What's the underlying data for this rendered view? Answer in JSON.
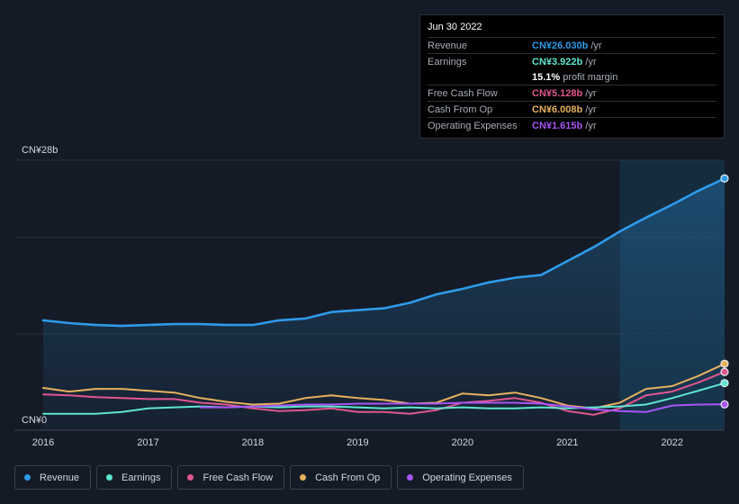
{
  "tooltip": {
    "date": "Jun 30 2022",
    "rows": [
      {
        "label": "Revenue",
        "value": "CN¥26.030b",
        "unit": "/yr",
        "color": "#2e9bea"
      },
      {
        "label": "Earnings",
        "value": "CN¥3.922b",
        "unit": "/yr",
        "color": "#5ee6d0"
      },
      {
        "label": "",
        "value": "15.1%",
        "unit": "profit margin",
        "color": "#ffffff"
      },
      {
        "label": "Free Cash Flow",
        "value": "CN¥5.128b",
        "unit": "/yr",
        "color": "#e0568f"
      },
      {
        "label": "Cash From Op",
        "value": "CN¥6.008b",
        "unit": "/yr",
        "color": "#e8b15e"
      },
      {
        "label": "Operating Expenses",
        "value": "CN¥1.615b",
        "unit": "/yr",
        "color": "#a855f7"
      }
    ]
  },
  "legend": [
    {
      "label": "Revenue",
      "color": "#2e9bea"
    },
    {
      "label": "Earnings",
      "color": "#5ee6d0"
    },
    {
      "label": "Free Cash Flow",
      "color": "#e0568f"
    },
    {
      "label": "Cash From Op",
      "color": "#e8b15e"
    },
    {
      "label": "Operating Expenses",
      "color": "#a855f7"
    }
  ],
  "chart_data": {
    "type": "line",
    "ylabel_top": "CN¥28b",
    "ylabel_bottom": "CN¥0",
    "ylim": [
      0,
      28
    ],
    "xlim": [
      2016.0,
      2022.5
    ],
    "highlight_start": 2021.5,
    "x_ticks": [
      {
        "label": "2016",
        "x": 2016.0
      },
      {
        "label": "2017",
        "x": 2017.0
      },
      {
        "label": "2018",
        "x": 2018.0
      },
      {
        "label": "2019",
        "x": 2019.0
      },
      {
        "label": "2020",
        "x": 2020.0
      },
      {
        "label": "2021",
        "x": 2021.0
      },
      {
        "label": "2022",
        "x": 2022.0
      }
    ],
    "series": [
      {
        "name": "Revenue",
        "color": "#2e9bea",
        "fill": true,
        "points": [
          [
            2016.0,
            10.7
          ],
          [
            2016.25,
            10.4
          ],
          [
            2016.5,
            10.2
          ],
          [
            2016.75,
            10.1
          ],
          [
            2017.0,
            10.2
          ],
          [
            2017.25,
            10.3
          ],
          [
            2017.5,
            10.3
          ],
          [
            2017.75,
            10.2
          ],
          [
            2018.0,
            10.2
          ],
          [
            2018.25,
            10.7
          ],
          [
            2018.5,
            10.9
          ],
          [
            2018.75,
            11.6
          ],
          [
            2019.0,
            11.8
          ],
          [
            2019.25,
            12.0
          ],
          [
            2019.5,
            12.6
          ],
          [
            2019.75,
            13.5
          ],
          [
            2020.0,
            14.1
          ],
          [
            2020.25,
            14.8
          ],
          [
            2020.5,
            15.3
          ],
          [
            2020.75,
            15.6
          ],
          [
            2021.0,
            17.1
          ],
          [
            2021.25,
            18.6
          ],
          [
            2021.5,
            20.3
          ],
          [
            2021.75,
            21.8
          ],
          [
            2022.0,
            23.2
          ],
          [
            2022.25,
            24.7
          ],
          [
            2022.5,
            26.03
          ]
        ]
      },
      {
        "name": "Earnings",
        "color": "#5ee6d0",
        "fill": false,
        "points": [
          [
            2016.0,
            0.6
          ],
          [
            2016.25,
            0.6
          ],
          [
            2016.5,
            0.6
          ],
          [
            2016.75,
            0.8
          ],
          [
            2017.0,
            1.2
          ],
          [
            2017.25,
            1.3
          ],
          [
            2017.5,
            1.4
          ],
          [
            2017.75,
            1.3
          ],
          [
            2018.0,
            1.4
          ],
          [
            2018.25,
            1.3
          ],
          [
            2018.5,
            1.4
          ],
          [
            2018.75,
            1.4
          ],
          [
            2019.0,
            1.3
          ],
          [
            2019.25,
            1.2
          ],
          [
            2019.5,
            1.3
          ],
          [
            2019.75,
            1.2
          ],
          [
            2020.0,
            1.3
          ],
          [
            2020.25,
            1.2
          ],
          [
            2020.5,
            1.2
          ],
          [
            2020.75,
            1.3
          ],
          [
            2021.0,
            1.2
          ],
          [
            2021.25,
            1.3
          ],
          [
            2021.5,
            1.4
          ],
          [
            2021.75,
            1.6
          ],
          [
            2022.0,
            2.3
          ],
          [
            2022.25,
            3.1
          ],
          [
            2022.5,
            3.92
          ]
        ]
      },
      {
        "name": "Free Cash Flow",
        "color": "#e0568f",
        "fill": false,
        "points": [
          [
            2016.0,
            2.7
          ],
          [
            2016.25,
            2.6
          ],
          [
            2016.5,
            2.4
          ],
          [
            2016.75,
            2.3
          ],
          [
            2017.0,
            2.2
          ],
          [
            2017.25,
            2.2
          ],
          [
            2017.5,
            1.8
          ],
          [
            2017.75,
            1.6
          ],
          [
            2018.0,
            1.2
          ],
          [
            2018.25,
            0.9
          ],
          [
            2018.5,
            1.0
          ],
          [
            2018.75,
            1.2
          ],
          [
            2019.0,
            0.8
          ],
          [
            2019.25,
            0.8
          ],
          [
            2019.5,
            0.6
          ],
          [
            2019.75,
            1.0
          ],
          [
            2020.0,
            1.8
          ],
          [
            2020.25,
            2.0
          ],
          [
            2020.5,
            2.3
          ],
          [
            2020.75,
            1.8
          ],
          [
            2021.0,
            0.9
          ],
          [
            2021.25,
            0.5
          ],
          [
            2021.5,
            1.2
          ],
          [
            2021.75,
            2.6
          ],
          [
            2022.0,
            3.0
          ],
          [
            2022.25,
            4.0
          ],
          [
            2022.5,
            5.13
          ]
        ]
      },
      {
        "name": "Cash From Op",
        "color": "#e8b15e",
        "fill": false,
        "points": [
          [
            2016.0,
            3.4
          ],
          [
            2016.25,
            3.0
          ],
          [
            2016.5,
            3.3
          ],
          [
            2016.75,
            3.3
          ],
          [
            2017.0,
            3.1
          ],
          [
            2017.25,
            2.9
          ],
          [
            2017.5,
            2.3
          ],
          [
            2017.75,
            1.9
          ],
          [
            2018.0,
            1.6
          ],
          [
            2018.25,
            1.7
          ],
          [
            2018.5,
            2.3
          ],
          [
            2018.75,
            2.6
          ],
          [
            2019.0,
            2.3
          ],
          [
            2019.25,
            2.1
          ],
          [
            2019.5,
            1.7
          ],
          [
            2019.75,
            1.8
          ],
          [
            2020.0,
            2.8
          ],
          [
            2020.25,
            2.6
          ],
          [
            2020.5,
            2.9
          ],
          [
            2020.75,
            2.3
          ],
          [
            2021.0,
            1.5
          ],
          [
            2021.25,
            1.2
          ],
          [
            2021.5,
            1.8
          ],
          [
            2021.75,
            3.3
          ],
          [
            2022.0,
            3.6
          ],
          [
            2022.25,
            4.7
          ],
          [
            2022.5,
            6.01
          ]
        ]
      },
      {
        "name": "Operating Expenses",
        "color": "#a855f7",
        "fill": false,
        "points": [
          [
            2017.5,
            1.3
          ],
          [
            2017.75,
            1.3
          ],
          [
            2018.0,
            1.4
          ],
          [
            2018.25,
            1.5
          ],
          [
            2018.5,
            1.6
          ],
          [
            2018.75,
            1.6
          ],
          [
            2019.0,
            1.7
          ],
          [
            2019.25,
            1.7
          ],
          [
            2019.5,
            1.7
          ],
          [
            2019.75,
            1.7
          ],
          [
            2020.0,
            1.8
          ],
          [
            2020.25,
            1.8
          ],
          [
            2020.5,
            1.8
          ],
          [
            2020.75,
            1.7
          ],
          [
            2021.0,
            1.4
          ],
          [
            2021.25,
            1.1
          ],
          [
            2021.5,
            0.9
          ],
          [
            2021.75,
            0.8
          ],
          [
            2022.0,
            1.5
          ],
          [
            2022.25,
            1.6
          ],
          [
            2022.5,
            1.62
          ]
        ]
      }
    ]
  }
}
